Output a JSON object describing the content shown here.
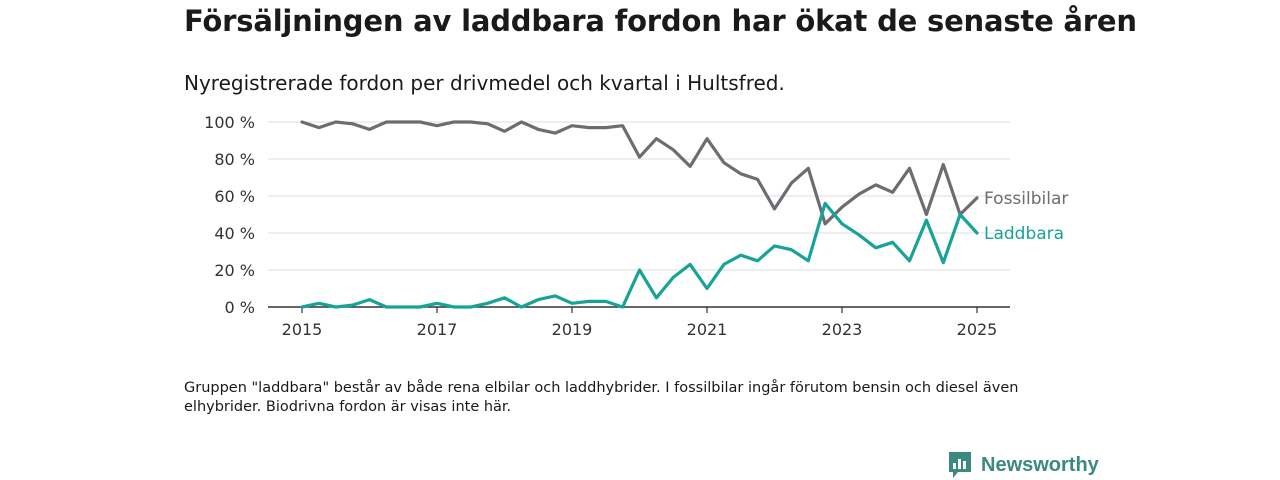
{
  "header": {
    "title": "Försäljningen av laddbara fordon har ökat de senaste åren",
    "subtitle": "Nyregistrerade fordon per drivmedel och kvartal i Hultsfred."
  },
  "footer": {
    "note": "Gruppen \"laddbara\" består av både rena elbilar och laddhybrider. I fossilbilar ingår förutom bensin och diesel även elhybrider. Biodrivna fordon är visas inte här.",
    "brand": "Newsworthy",
    "brand_icon": "bar-chart-speech-bubble-icon"
  },
  "chart_data": {
    "type": "line",
    "x_ticks": [
      "2015",
      "2017",
      "2019",
      "2021",
      "2023",
      "2025"
    ],
    "y_ticks": [
      "0 %",
      "20 %",
      "40 %",
      "60 %",
      "80 %",
      "100 %"
    ],
    "ylim": [
      0,
      100
    ],
    "grid": true,
    "x": [
      "2015Q1",
      "2015Q2",
      "2015Q3",
      "2015Q4",
      "2016Q1",
      "2016Q2",
      "2016Q3",
      "2016Q4",
      "2017Q1",
      "2017Q2",
      "2017Q3",
      "2017Q4",
      "2018Q1",
      "2018Q2",
      "2018Q3",
      "2018Q4",
      "2019Q1",
      "2019Q2",
      "2019Q3",
      "2019Q4",
      "2020Q1",
      "2020Q2",
      "2020Q3",
      "2020Q4",
      "2021Q1",
      "2021Q2",
      "2021Q3",
      "2021Q4",
      "2022Q1",
      "2022Q2",
      "2022Q3",
      "2022Q4",
      "2023Q1",
      "2023Q2",
      "2023Q3",
      "2023Q4",
      "2024Q1",
      "2024Q2",
      "2024Q3",
      "2024Q4",
      "2025Q1"
    ],
    "series": [
      {
        "name": "Fossilbilar",
        "color": "#6e6c72",
        "values": [
          100,
          97,
          100,
          99,
          96,
          100,
          100,
          100,
          98,
          100,
          100,
          99,
          95,
          100,
          96,
          94,
          98,
          97,
          97,
          98,
          81,
          91,
          85,
          76,
          91,
          78,
          72,
          69,
          53,
          67,
          75,
          45,
          54,
          61,
          66,
          62,
          75,
          50,
          77,
          50,
          59
        ]
      },
      {
        "name": "Laddbara",
        "color": "#17a398",
        "values": [
          0,
          2,
          0,
          1,
          4,
          0,
          0,
          0,
          2,
          0,
          0,
          2,
          5,
          0,
          4,
          6,
          2,
          3,
          3,
          0,
          20,
          5,
          16,
          23,
          10,
          23,
          28,
          25,
          33,
          31,
          25,
          56,
          45,
          39,
          32,
          35,
          25,
          47,
          24,
          50,
          40
        ]
      }
    ]
  }
}
